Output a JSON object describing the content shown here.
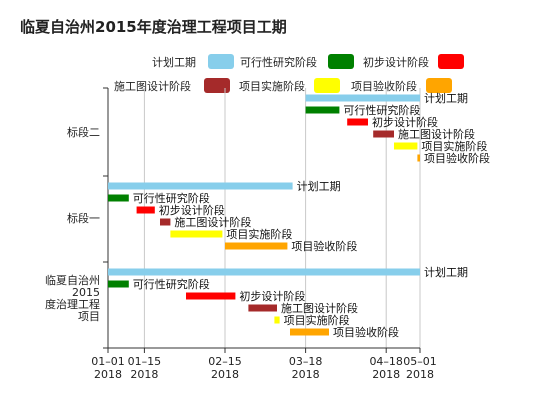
{
  "chart_data": {
    "type": "gantt",
    "title": "临夏自治州2015年度治理工程项目工期",
    "legend": {
      "placement": "top-right",
      "items": [
        {
          "name": "计划工期",
          "color": "#87ceeb"
        },
        {
          "name": "可行性研究阶段",
          "color": "#008000"
        },
        {
          "name": "初步设计阶段",
          "color": "#ff0000"
        },
        {
          "name": "施工图设计阶段",
          "color": "#a52a2a"
        },
        {
          "name": "项目实施阶段",
          "color": "#ffff00"
        },
        {
          "name": "项目验收阶段",
          "color": "#ffa500"
        }
      ]
    },
    "x_ticks": [
      {
        "date": "2018-01-01",
        "label": [
          "01–01",
          "2018"
        ]
      },
      {
        "date": "2018-01-15",
        "label": [
          "01–15",
          "2018"
        ]
      },
      {
        "date": "2018-02-15",
        "label": [
          "02–15",
          "2018"
        ]
      },
      {
        "date": "2018-03-18",
        "label": [
          "03–18",
          "2018"
        ]
      },
      {
        "date": "2018-04-18",
        "label": [
          "04–18",
          "2018"
        ]
      },
      {
        "date": "2018-05-01",
        "label": [
          "05–01",
          "2018"
        ]
      }
    ],
    "x_range": [
      "2018-01-01",
      "2018-05-01"
    ],
    "vertical_gridlines": true,
    "groups": [
      {
        "name": "临夏自治州2015年度治理工程项目",
        "label_lines": [
          "临夏自治州",
          "2015",
          "年",
          "度治理工程",
          "项目"
        ],
        "tasks": [
          {
            "name": "计划工期",
            "start": "2018-01-01",
            "end": "2018-05-01",
            "color": "#87ceeb"
          },
          {
            "name": "可行性研究阶段",
            "start": "2018-01-01",
            "end": "2018-01-09",
            "color": "#008000"
          },
          {
            "name": "初步设计阶段",
            "start": "2018-01-31",
            "end": "2018-02-19",
            "color": "#ff0000"
          },
          {
            "name": "施工图设计阶段",
            "start": "2018-02-24",
            "end": "2018-03-07",
            "color": "#a52a2a"
          },
          {
            "name": "项目实施阶段",
            "start": "2018-03-06",
            "end": "2018-03-08",
            "color": "#ffff00"
          },
          {
            "name": "项目验收阶段",
            "start": "2018-03-12",
            "end": "2018-03-27",
            "color": "#ffa500"
          }
        ]
      },
      {
        "name": "标段一",
        "label_lines": [
          "标段一"
        ],
        "tasks": [
          {
            "name": "计划工期",
            "start": "2018-01-01",
            "end": "2018-03-13",
            "color": "#87ceeb"
          },
          {
            "name": "可行性研究阶段",
            "start": "2018-01-01",
            "end": "2018-01-09",
            "color": "#008000"
          },
          {
            "name": "初步设计阶段",
            "start": "2018-01-12",
            "end": "2018-01-19",
            "color": "#ff0000"
          },
          {
            "name": "施工图设计阶段",
            "start": "2018-01-21",
            "end": "2018-01-25",
            "color": "#a52a2a"
          },
          {
            "name": "项目实施阶段",
            "start": "2018-01-25",
            "end": "2018-02-14",
            "color": "#ffff00"
          },
          {
            "name": "项目验收阶段",
            "start": "2018-02-15",
            "end": "2018-03-11",
            "color": "#ffa500"
          }
        ]
      },
      {
        "name": "标段二",
        "label_lines": [
          "标段二"
        ],
        "tasks": [
          {
            "name": "计划工期",
            "start": "2018-03-18",
            "end": "2018-05-01",
            "color": "#87ceeb"
          },
          {
            "name": "可行性研究阶段",
            "start": "2018-03-18",
            "end": "2018-03-31",
            "color": "#008000"
          },
          {
            "name": "初步设计阶段",
            "start": "2018-04-03",
            "end": "2018-04-11",
            "color": "#ff0000"
          },
          {
            "name": "施工图设计阶段",
            "start": "2018-04-13",
            "end": "2018-04-21",
            "color": "#a52a2a"
          },
          {
            "name": "项目实施阶段",
            "start": "2018-04-21",
            "end": "2018-04-30",
            "color": "#ffff00"
          },
          {
            "name": "项目验收阶段",
            "start": "2018-04-30",
            "end": "2018-05-01",
            "color": "#ffa500"
          }
        ]
      }
    ]
  }
}
